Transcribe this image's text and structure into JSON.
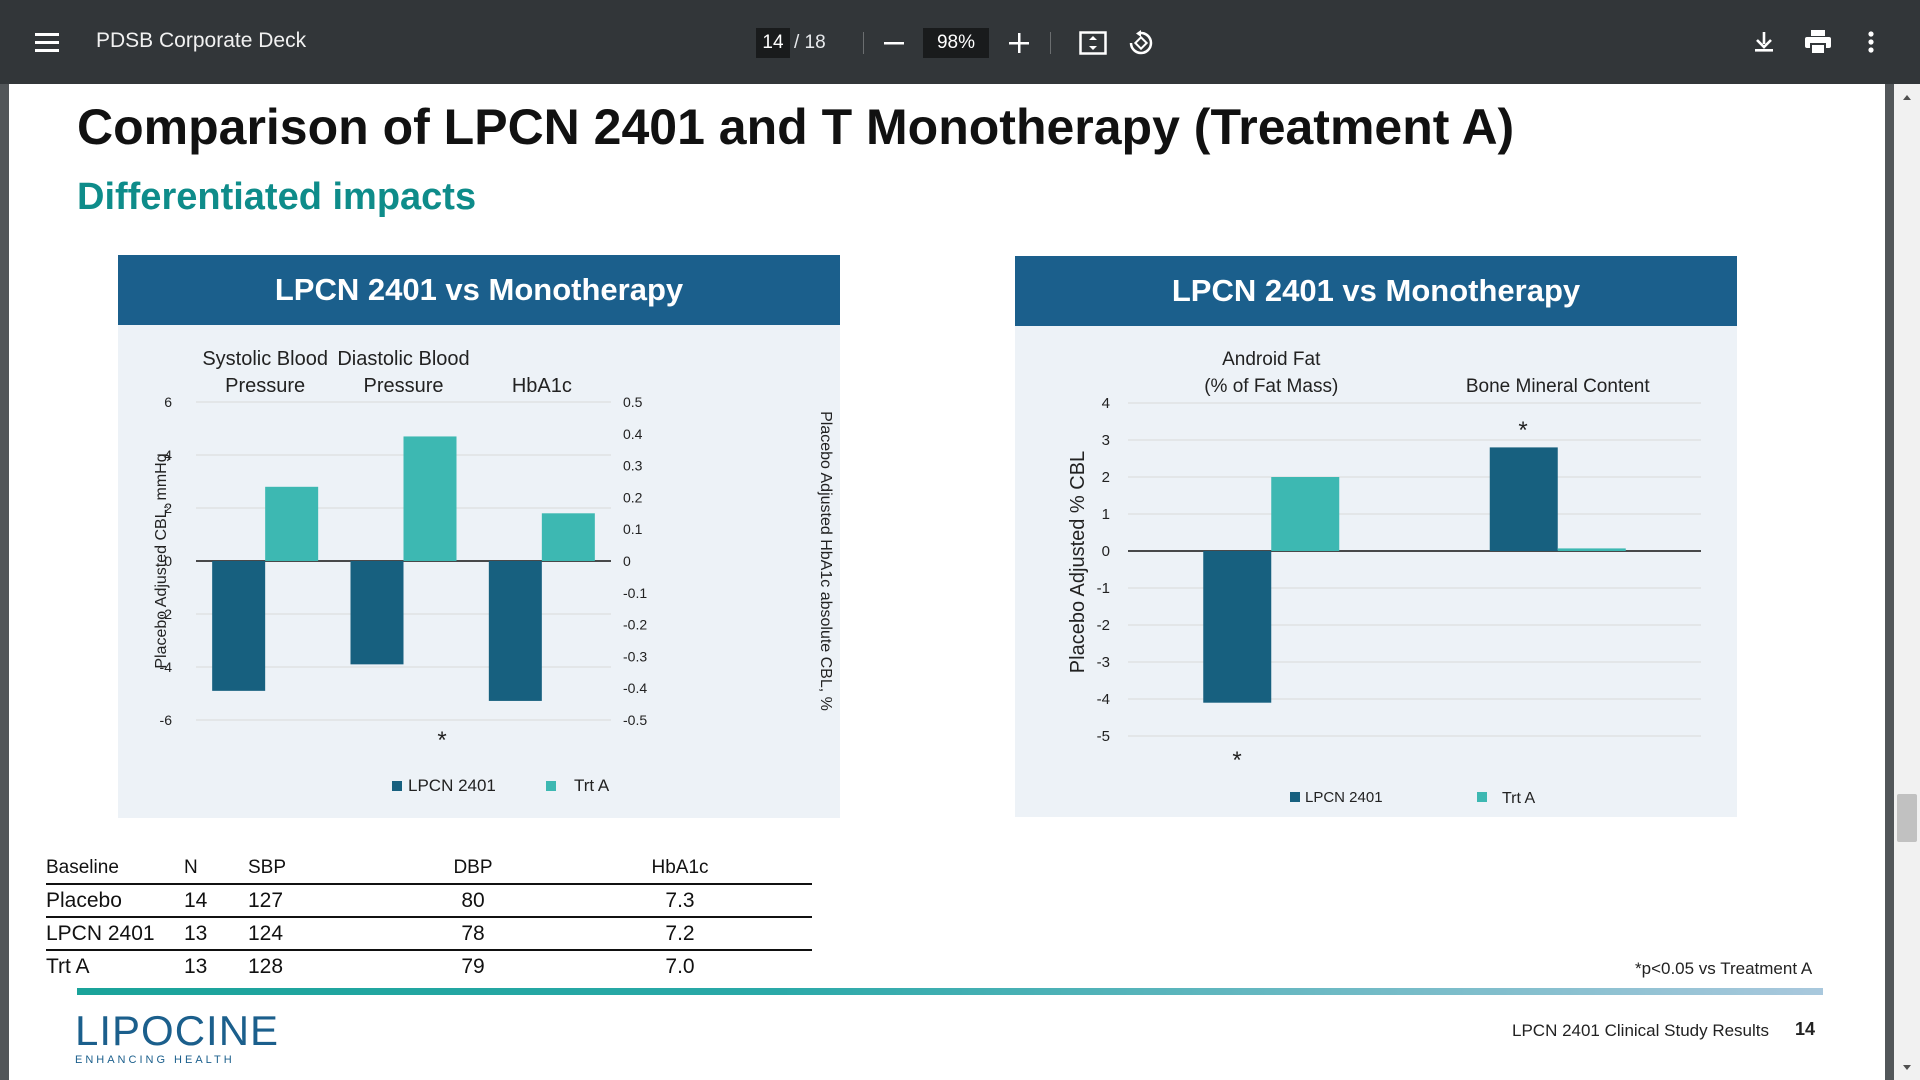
{
  "viewer": {
    "title": "PDSB Corporate Deck",
    "current_page": "14",
    "page_total": "/ 18",
    "zoom": "98%",
    "icons": [
      "menu-icon",
      "zoom-out-icon",
      "zoom-in-icon",
      "fit-page-icon",
      "rotate-icon",
      "download-icon",
      "print-icon",
      "more-options-icon"
    ]
  },
  "slide": {
    "title": "Comparison of LPCN 2401 and T Monotherapy (Treatment A)",
    "subtitle": "Differentiated impacts",
    "footnote": "*p<0.05 vs Treatment A",
    "footer_text": "LPCN 2401 Clinical Study Results",
    "page_number": "14",
    "logo": {
      "name": "LIPOCINE",
      "tagline": "ENHANCING HEALTH"
    },
    "colors": {
      "series1": "#17607f",
      "series2": "#3db8b2",
      "header": "#1b5f8c",
      "subtitle": "#0e8c8a"
    }
  },
  "chart_data": [
    {
      "type": "bar",
      "header": "LPCN 2401 vs Monotherapy",
      "category_labels": [
        [
          "Systolic Blood",
          "Pressure"
        ],
        [
          "Diastolic Blood",
          "Pressure"
        ],
        [
          "HbA1c"
        ]
      ],
      "series": [
        {
          "name": "LPCN 2401",
          "values": [
            -4.9,
            -3.9,
            -0.44
          ]
        },
        {
          "name": "Trt A",
          "values": [
            2.8,
            4.7,
            0.15
          ]
        }
      ],
      "axis_for_category": [
        "left",
        "left",
        "right"
      ],
      "ylabel": "Placebo Adjusted CBL, mmHg",
      "ylim": [
        -6,
        6
      ],
      "yticks": [
        "6",
        "4",
        "2",
        "0",
        "-2",
        "-4",
        "-6"
      ],
      "y2label": "Placebo Adjusted HbA1c absolute CBL, %",
      "y2lim": [
        -0.5,
        0.5
      ],
      "y2ticks": [
        "0.5",
        "0.4",
        "0.3",
        "0.2",
        "0.1",
        "0",
        "-0.1",
        "-0.2",
        "-0.3",
        "-0.4",
        "-0.5"
      ],
      "significance": "*",
      "grid": true,
      "legend": "bottom"
    },
    {
      "type": "bar",
      "header": "LPCN 2401 vs Monotherapy",
      "category_labels": [
        [
          "Android Fat",
          "(% of Fat Mass)"
        ],
        [
          "Bone Mineral Content"
        ]
      ],
      "series": [
        {
          "name": "LPCN 2401",
          "values": [
            -4.1,
            2.8
          ]
        },
        {
          "name": "Trt A",
          "values": [
            2.0,
            0.07
          ]
        }
      ],
      "ylabel": "Placebo Adjusted % CBL",
      "ylim": [
        -5,
        4
      ],
      "yticks": [
        "4",
        "3",
        "2",
        "1",
        "0",
        "-1",
        "-2",
        "-3",
        "-4",
        "-5"
      ],
      "significance": "*",
      "grid": true,
      "legend": "bottom"
    }
  ],
  "baseline_table": {
    "headers": [
      "Baseline",
      "N",
      "SBP",
      "DBP",
      "HbA1c"
    ],
    "rows": [
      [
        "Placebo",
        "14",
        "127",
        "80",
        "7.3"
      ],
      [
        "LPCN 2401",
        "13",
        "124",
        "78",
        "7.2"
      ],
      [
        "Trt A",
        "13",
        "128",
        "79",
        "7.0"
      ]
    ]
  }
}
